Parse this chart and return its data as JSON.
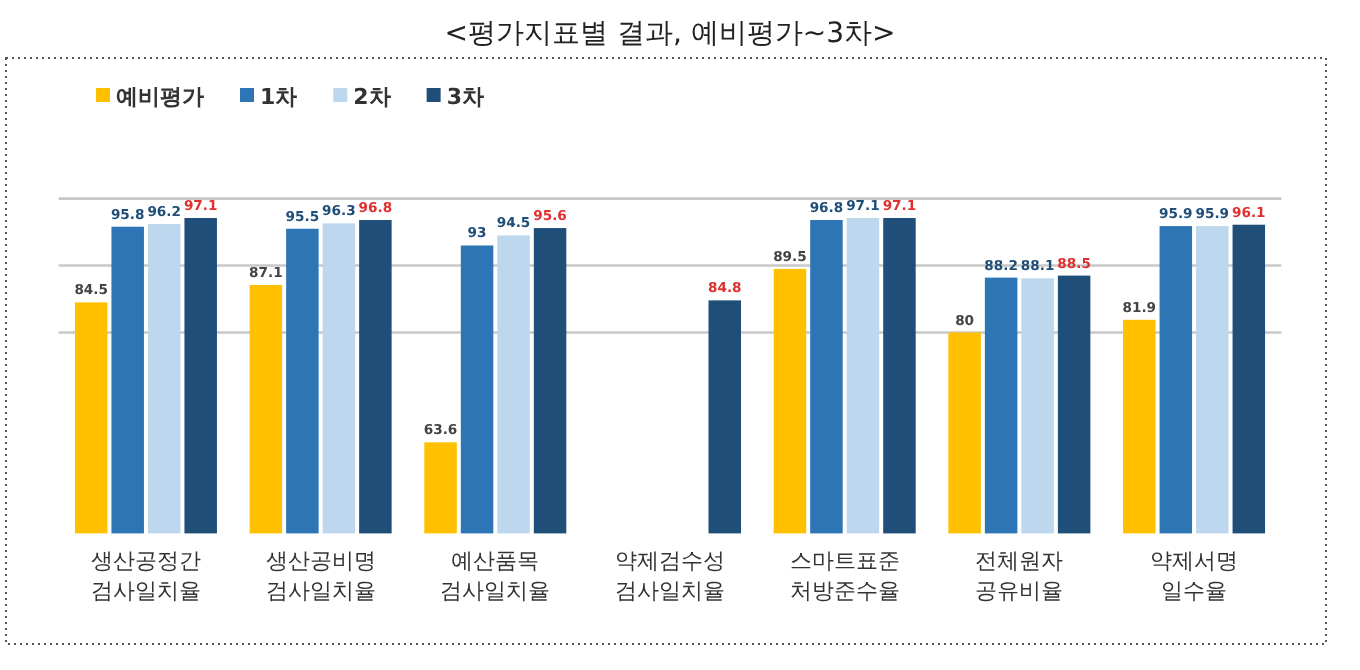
{
  "chart_data": {
    "type": "bar",
    "title": "<평가지표별 결과, 예비평가~3차>",
    "categories": [
      "생산공정간 검사일치율",
      "생산공비명 검사일치율",
      "예산품목 검사일치율",
      "약제검수성 검사일치율",
      "스마트표준 처방준수율",
      "전체원자 공유비율",
      "약제서명 일수율"
    ],
    "series": [
      {
        "name": "예비평가",
        "color": "#ffc000",
        "values": [
          84.5,
          87.1,
          63.6,
          null,
          89.5,
          80,
          81.9
        ]
      },
      {
        "name": "1차",
        "color": "#2e75b6",
        "values": [
          95.8,
          95.5,
          93.0,
          null,
          96.8,
          88.2,
          95.9
        ]
      },
      {
        "name": "2차",
        "color": "#bdd7ee",
        "values": [
          96.2,
          96.3,
          94.5,
          null,
          97.1,
          88.1,
          95.9
        ]
      },
      {
        "name": "3차",
        "color": "#1f4e79",
        "values": [
          97.1,
          96.8,
          95.6,
          84.8,
          97.1,
          88.5,
          96.1
        ]
      }
    ],
    "ylim": [
      50,
      100
    ],
    "yticks": [
      {
        "value": 80,
        "label": null
      },
      {
        "value": 90,
        "label": null
      },
      {
        "value": 100,
        "label": null
      }
    ],
    "tick_labels": "x",
    "legend": "top left",
    "data_labels": true
  }
}
